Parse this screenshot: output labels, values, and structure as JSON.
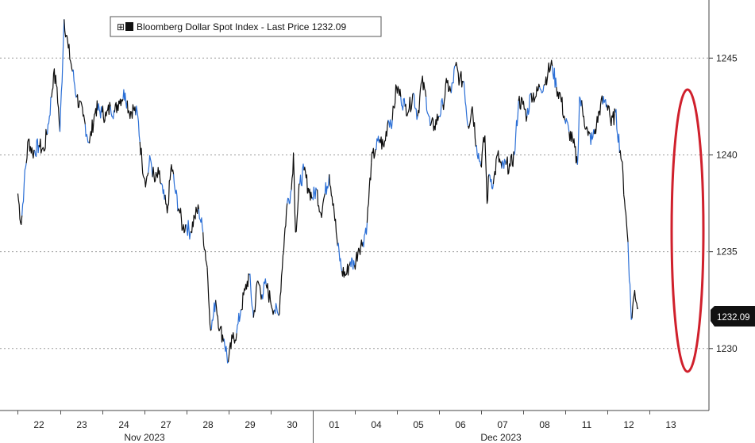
{
  "chart_data": {
    "type": "line",
    "title": "",
    "xlabel": "",
    "ylabel": "",
    "legend": {
      "label": "Bloomberg Dollar Spot Index - Last Price",
      "value": "1232.09",
      "position": "top-left"
    },
    "y_axis": {
      "side": "right",
      "ylim": [
        1226.8,
        1248
      ],
      "ticks": [
        1230,
        1235,
        1240,
        1245
      ],
      "tick_labels": [
        "1230",
        "1235",
        "1240",
        "1245"
      ],
      "grid": true
    },
    "x_axis": {
      "day_labels": [
        "22",
        "23",
        "24",
        "27",
        "28",
        "29",
        "30",
        "01",
        "04",
        "05",
        "06",
        "07",
        "08",
        "11",
        "12",
        "13"
      ],
      "month_labels": [
        "Nov 2023",
        "Dec 2023"
      ]
    },
    "last_price": 1232.09,
    "last_price_label": "1232.09",
    "series": [
      {
        "name": "Bloomberg Dollar Spot Index - Last Price",
        "points": [
          [
            0.0,
            1238.0
          ],
          [
            0.08,
            1236.4
          ],
          [
            0.15,
            1238.5
          ],
          [
            0.25,
            1240.8
          ],
          [
            0.35,
            1240.1
          ],
          [
            0.5,
            1240.5
          ],
          [
            0.62,
            1240.2
          ],
          [
            0.75,
            1242.0
          ],
          [
            0.85,
            1244.2
          ],
          [
            0.93,
            1243.5
          ],
          [
            1.0,
            1241.2
          ],
          [
            1.1,
            1247.0
          ],
          [
            1.2,
            1245.5
          ],
          [
            1.3,
            1244.3
          ],
          [
            1.4,
            1243.0
          ],
          [
            1.55,
            1242.0
          ],
          [
            1.7,
            1240.6
          ],
          [
            1.85,
            1242.4
          ],
          [
            2.0,
            1242.2
          ],
          [
            2.1,
            1242.0
          ],
          [
            2.2,
            1242.5
          ],
          [
            2.3,
            1242.2
          ],
          [
            2.4,
            1242.8
          ],
          [
            2.55,
            1243.2
          ],
          [
            2.65,
            1242.2
          ],
          [
            2.75,
            1242.4
          ],
          [
            2.85,
            1242.0
          ],
          [
            2.95,
            1239.6
          ],
          [
            3.05,
            1238.6
          ],
          [
            3.15,
            1239.8
          ],
          [
            3.25,
            1238.6
          ],
          [
            3.35,
            1239.0
          ],
          [
            3.45,
            1238.0
          ],
          [
            3.55,
            1237.0
          ],
          [
            3.65,
            1239.5
          ],
          [
            3.75,
            1238.0
          ],
          [
            3.85,
            1237.0
          ],
          [
            3.92,
            1236.2
          ],
          [
            4.0,
            1236.4
          ],
          [
            4.1,
            1236.0
          ],
          [
            4.2,
            1236.8
          ],
          [
            4.3,
            1237.2
          ],
          [
            4.4,
            1236.0
          ],
          [
            4.5,
            1234.2
          ],
          [
            4.55,
            1232.0
          ],
          [
            4.6,
            1231.0
          ],
          [
            4.7,
            1232.5
          ],
          [
            4.8,
            1231.0
          ],
          [
            4.9,
            1230.5
          ],
          [
            5.0,
            1229.3
          ],
          [
            5.1,
            1230.5
          ],
          [
            5.2,
            1230.8
          ],
          [
            5.3,
            1232.0
          ],
          [
            5.4,
            1233.0
          ],
          [
            5.5,
            1233.8
          ],
          [
            5.6,
            1231.6
          ],
          [
            5.7,
            1233.5
          ],
          [
            5.8,
            1232.8
          ],
          [
            5.9,
            1233.3
          ],
          [
            6.0,
            1232.5
          ],
          [
            6.1,
            1232.0
          ],
          [
            6.2,
            1231.7
          ],
          [
            6.3,
            1234.8
          ],
          [
            6.4,
            1237.5
          ],
          [
            6.5,
            1238.2
          ],
          [
            6.55,
            1240.1
          ],
          [
            6.6,
            1236.0
          ],
          [
            6.7,
            1238.5
          ],
          [
            6.8,
            1239.2
          ],
          [
            6.9,
            1238.3
          ],
          [
            7.0,
            1237.8
          ],
          [
            7.1,
            1238.2
          ],
          [
            7.2,
            1237.0
          ],
          [
            7.3,
            1238.0
          ],
          [
            7.4,
            1239.0
          ],
          [
            7.5,
            1237.5
          ],
          [
            7.6,
            1235.3
          ],
          [
            7.7,
            1234.0
          ],
          [
            7.8,
            1233.8
          ],
          [
            7.9,
            1234.5
          ],
          [
            8.0,
            1234.3
          ],
          [
            8.1,
            1235.2
          ],
          [
            8.2,
            1235.5
          ],
          [
            8.3,
            1236.5
          ],
          [
            8.4,
            1239.6
          ],
          [
            8.5,
            1240.3
          ],
          [
            8.6,
            1240.8
          ],
          [
            8.7,
            1240.4
          ],
          [
            8.8,
            1241.8
          ],
          [
            8.9,
            1241.8
          ],
          [
            9.0,
            1243.5
          ],
          [
            9.1,
            1243.0
          ],
          [
            9.2,
            1242.5
          ],
          [
            9.3,
            1242.4
          ],
          [
            9.4,
            1243.2
          ],
          [
            9.5,
            1242.0
          ],
          [
            9.6,
            1243.8
          ],
          [
            9.7,
            1243.0
          ],
          [
            9.8,
            1241.5
          ],
          [
            9.9,
            1241.5
          ],
          [
            10.0,
            1242.0
          ],
          [
            10.1,
            1242.6
          ],
          [
            10.2,
            1243.7
          ],
          [
            10.3,
            1243.2
          ],
          [
            10.4,
            1244.6
          ],
          [
            10.5,
            1243.9
          ],
          [
            10.6,
            1243.8
          ],
          [
            10.7,
            1241.5
          ],
          [
            10.8,
            1242.5
          ],
          [
            10.9,
            1240.5
          ],
          [
            11.0,
            1239.5
          ],
          [
            11.1,
            1241.0
          ],
          [
            11.15,
            1237.5
          ],
          [
            11.2,
            1239.0
          ],
          [
            11.3,
            1238.5
          ],
          [
            11.4,
            1240.0
          ],
          [
            11.5,
            1239.3
          ],
          [
            11.6,
            1239.5
          ],
          [
            11.7,
            1239.4
          ],
          [
            11.8,
            1240.0
          ],
          [
            11.9,
            1242.8
          ],
          [
            12.0,
            1242.6
          ],
          [
            12.1,
            1242.0
          ],
          [
            12.2,
            1243.2
          ],
          [
            12.3,
            1243.0
          ],
          [
            12.4,
            1243.5
          ],
          [
            12.5,
            1243.6
          ],
          [
            12.6,
            1244.3
          ],
          [
            12.7,
            1244.6
          ],
          [
            12.8,
            1243.5
          ],
          [
            12.9,
            1243.0
          ],
          [
            13.0,
            1241.8
          ],
          [
            13.1,
            1241.2
          ],
          [
            13.2,
            1240.6
          ],
          [
            13.3,
            1239.5
          ],
          [
            13.35,
            1243.0
          ],
          [
            13.45,
            1242.0
          ],
          [
            13.55,
            1241.0
          ],
          [
            13.65,
            1240.8
          ],
          [
            13.75,
            1241.5
          ],
          [
            13.85,
            1242.6
          ],
          [
            13.95,
            1242.8
          ],
          [
            14.05,
            1242.5
          ],
          [
            14.1,
            1241.5
          ],
          [
            14.2,
            1242.2
          ],
          [
            14.35,
            1239.7
          ],
          [
            14.5,
            1235.5
          ],
          [
            14.58,
            1231.5
          ],
          [
            14.66,
            1233.0
          ],
          [
            14.74,
            1232.09
          ]
        ]
      }
    ]
  }
}
